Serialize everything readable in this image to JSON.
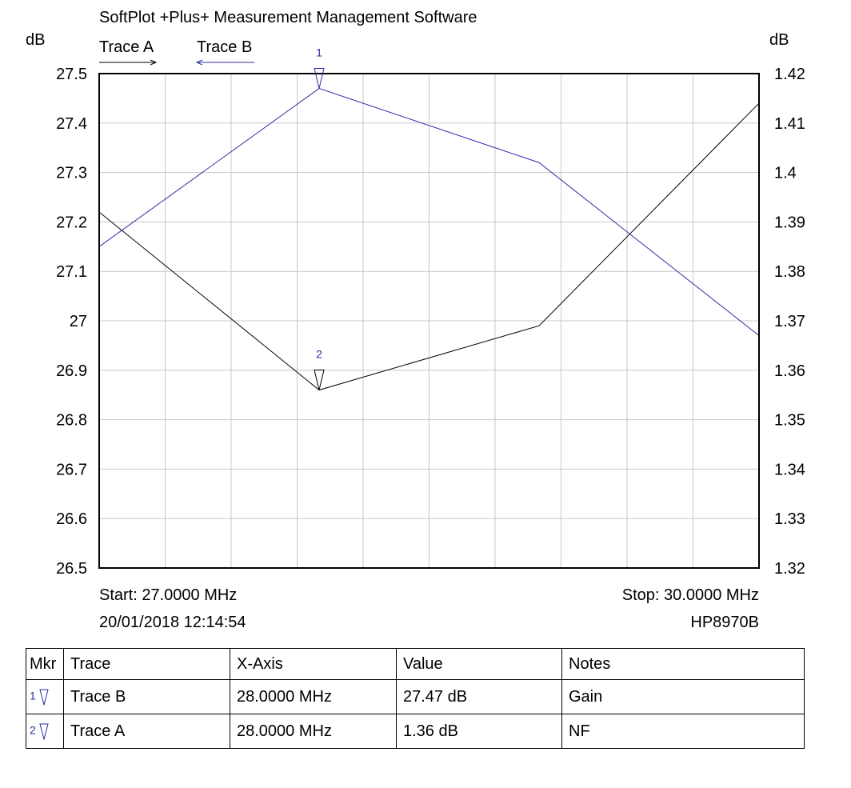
{
  "header": {
    "title": "SoftPlot +Plus+ Measurement Management Software",
    "left_unit": "dB",
    "right_unit": "dB",
    "legend": [
      "Trace A",
      "Trace B"
    ]
  },
  "footer": {
    "start": "Start: 27.0000 MHz",
    "stop": "Stop: 30.0000 MHz",
    "timestamp": "20/01/2018 12:14:54",
    "instrument": "HP8970B"
  },
  "colors": {
    "trace_a": "#000000",
    "trace_b": "#2b2ba8",
    "grid": "#c8c8c8"
  },
  "chart_data": {
    "type": "line",
    "title": "SoftPlot +Plus+ Measurement Management Software",
    "x_unit": "MHz",
    "xlim": [
      27.0,
      30.0
    ],
    "x_grid_divisions": 10,
    "grid": true,
    "left_axis": {
      "label": "dB",
      "ylim": [
        26.5,
        27.5
      ],
      "ticks": [
        "27.5",
        "27.4",
        "27.3",
        "27.2",
        "27.1",
        "27",
        "26.9",
        "26.8",
        "26.7",
        "26.6",
        "26.5"
      ]
    },
    "right_axis": {
      "label": "dB",
      "ylim": [
        1.32,
        1.42
      ],
      "ticks": [
        "1.42",
        "1.41",
        "1.4",
        "1.39",
        "1.38",
        "1.37",
        "1.36",
        "1.35",
        "1.34",
        "1.33",
        "1.32"
      ]
    },
    "series": [
      {
        "name": "Trace A",
        "axis": "right",
        "color": "#000000",
        "x": [
          27.0,
          28.0,
          29.0,
          30.0
        ],
        "values": [
          1.392,
          1.356,
          1.369,
          1.414
        ]
      },
      {
        "name": "Trace B",
        "axis": "left",
        "color": "#2b2ba8",
        "x": [
          27.0,
          28.0,
          29.0,
          30.0
        ],
        "values": [
          27.15,
          27.47,
          27.32,
          26.97
        ]
      }
    ],
    "markers": [
      {
        "label": "1",
        "series": "Trace B",
        "x": 28.0,
        "value": 27.47
      },
      {
        "label": "2",
        "series": "Trace A",
        "x": 28.0,
        "value": 1.356
      }
    ]
  },
  "marker_table": {
    "headers": [
      "Mkr",
      "Trace",
      "X-Axis",
      "Value",
      "Notes"
    ],
    "rows": [
      {
        "mkr": "1",
        "trace": "Trace B",
        "x_axis": "28.0000 MHz",
        "value": "27.47 dB",
        "notes": "Gain"
      },
      {
        "mkr": "2",
        "trace": "Trace A",
        "x_axis": "28.0000 MHz",
        "value": "1.36 dB",
        "notes": "NF"
      }
    ]
  }
}
